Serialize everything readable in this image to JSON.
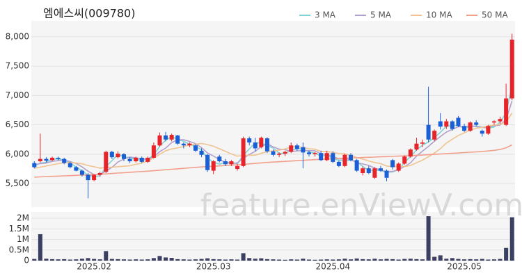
{
  "chart_data": [
    {
      "type": "candlestick",
      "title": "엠에스씨(009780)",
      "watermark": "feature.enViewV.com",
      "up_color": "#e8242b",
      "down_color": "#1a5fd6",
      "grid": true,
      "ylim": [
        5100,
        8270
      ],
      "yticks": [
        {
          "value": 5500,
          "label": "5,500"
        },
        {
          "value": 6000,
          "label": "6,000"
        },
        {
          "value": 6500,
          "label": "6,500"
        },
        {
          "value": 7000,
          "label": "7,000"
        },
        {
          "value": 7500,
          "label": "7,500"
        },
        {
          "value": 8000,
          "label": "8,000"
        }
      ],
      "open": [
        5850,
        5880,
        5920,
        5900,
        5940,
        5920,
        5850,
        5780,
        5720,
        5650,
        5560,
        5650,
        5700,
        6040,
        5950,
        6000,
        5920,
        5880,
        5940,
        5870,
        5940,
        6150,
        6320,
        6250,
        6320,
        6180,
        6150,
        6150,
        6060,
        5990,
        5720,
        5960,
        5880,
        5830,
        5750,
        5800,
        6270,
        6200,
        6120,
        6270,
        6050,
        5990,
        6010,
        6040,
        6150,
        6120,
        6030,
        6000,
        6020,
        5900,
        6020,
        5870,
        5800,
        5990,
        5900,
        5680,
        5760,
        5600,
        5760,
        5720,
        5900,
        5720,
        5840,
        5960,
        6080,
        6180,
        6500,
        6250,
        6560,
        6470,
        6560,
        6620,
        6480,
        6400,
        6540,
        6400,
        6350,
        6540,
        6560,
        6500,
        6950
      ],
      "high": [
        5880,
        6350,
        5950,
        5960,
        5960,
        5940,
        5870,
        5800,
        5740,
        5680,
        5660,
        5700,
        6060,
        6060,
        6050,
        6020,
        5950,
        5960,
        5960,
        5960,
        6200,
        6370,
        6380,
        6350,
        6330,
        6200,
        6200,
        6170,
        6100,
        6000,
        5900,
        5990,
        5920,
        5900,
        5830,
        6300,
        6300,
        6280,
        6300,
        6290,
        6080,
        6030,
        6060,
        6200,
        6180,
        6200,
        6060,
        6040,
        6060,
        6060,
        6050,
        5890,
        6010,
        6020,
        5920,
        5790,
        5800,
        5780,
        5800,
        5740,
        5920,
        5860,
        5980,
        6100,
        6280,
        6250,
        7150,
        6420,
        6700,
        6600,
        6580,
        6650,
        6520,
        6560,
        6580,
        6420,
        6500,
        6580,
        6640,
        7200,
        8050
      ],
      "low": [
        5760,
        5860,
        5860,
        5880,
        5900,
        5830,
        5760,
        5710,
        5620,
        5250,
        5540,
        5620,
        5680,
        5920,
        5930,
        5880,
        5850,
        5860,
        5850,
        5850,
        5930,
        6130,
        6220,
        6220,
        6160,
        6100,
        6120,
        6040,
        5950,
        5700,
        5660,
        5860,
        5800,
        5800,
        5720,
        5780,
        6150,
        6050,
        6100,
        6020,
        5960,
        5950,
        5970,
        6020,
        6060,
        5760,
        5960,
        5960,
        5880,
        5880,
        5850,
        5780,
        5780,
        5880,
        5700,
        5640,
        5660,
        5580,
        5700,
        5540,
        5740,
        5700,
        5820,
        5940,
        6060,
        6120,
        6200,
        6220,
        6420,
        6430,
        6400,
        6460,
        6380,
        6380,
        6480,
        6300,
        6330,
        6500,
        6520,
        6480,
        6920
      ],
      "close": [
        5780,
        5920,
        5890,
        5940,
        5920,
        5850,
        5780,
        5720,
        5650,
        5560,
        5650,
        5680,
        6040,
        5950,
        6010,
        5920,
        5880,
        5940,
        5870,
        5940,
        6150,
        6320,
        6250,
        6330,
        6180,
        6150,
        6180,
        6060,
        5990,
        5730,
        5880,
        5880,
        5830,
        5880,
        5800,
        6270,
        6200,
        6100,
        6280,
        6050,
        5990,
        6010,
        6040,
        6150,
        6090,
        6030,
        6000,
        6020,
        5900,
        6020,
        5870,
        5800,
        5990,
        5900,
        5720,
        5760,
        5680,
        5760,
        5720,
        5600,
        5780,
        5840,
        5960,
        6080,
        6180,
        6200,
        6250,
        6400,
        6470,
        6560,
        6430,
        6480,
        6400,
        6540,
        6500,
        6350,
        6480,
        6560,
        6600,
        6950,
        7950
      ],
      "series": [
        {
          "name": "3 MA",
          "color": "#7fd3d3",
          "values": [
            5800,
            5850,
            5863,
            5917,
            5917,
            5903,
            5850,
            5783,
            5717,
            5643,
            5620,
            5630,
            5790,
            5890,
            6000,
            5960,
            5937,
            5913,
            5897,
            5917,
            5987,
            6137,
            6240,
            6300,
            6253,
            6220,
            6170,
            6130,
            6077,
            5927,
            5867,
            5830,
            5863,
            5863,
            5837,
            5983,
            6090,
            6190,
            6193,
            6143,
            6107,
            6017,
            6013,
            6067,
            6093,
            6090,
            6040,
            6017,
            5973,
            5980,
            5930,
            5897,
            5887,
            5897,
            5870,
            5793,
            5720,
            5733,
            5720,
            5693,
            5700,
            5740,
            5860,
            5960,
            6073,
            6153,
            6210,
            6283,
            6373,
            6477,
            6487,
            6490,
            6437,
            6473,
            6480,
            6463,
            6443,
            6463,
            6547,
            6703,
            7167
          ]
        },
        {
          "name": "5 MA",
          "color": "#b3a0cc",
          "values": [
            5820,
            5840,
            5850,
            5880,
            5890,
            5900,
            5876,
            5842,
            5784,
            5712,
            5652,
            5652,
            5716,
            5776,
            5866,
            5920,
            5952,
            5940,
            5924,
            5910,
            5960,
            6044,
            6106,
            6198,
            6246,
            6246,
            6218,
            6180,
            6112,
            6022,
            5968,
            5908,
            5862,
            5840,
            5854,
            5932,
            5996,
            6050,
            6130,
            6180,
            6124,
            6086,
            6078,
            6048,
            6056,
            6064,
            6062,
            6058,
            6008,
            5994,
            5962,
            5922,
            5916,
            5916,
            5856,
            5834,
            5810,
            5764,
            5728,
            5704,
            5708,
            5740,
            5792,
            5852,
            5968,
            6052,
            6134,
            6222,
            6300,
            6376,
            6422,
            6468,
            6468,
            6482,
            6470,
            6454,
            6454,
            6486,
            6498,
            6588,
            6908
          ]
        },
        {
          "name": "10 MA",
          "color": "#f0c38f",
          "values": [
            5760,
            5780,
            5800,
            5820,
            5840,
            5856,
            5860,
            5850,
            5837,
            5808,
            5787,
            5763,
            5778,
            5779,
            5788,
            5795,
            5805,
            5827,
            5849,
            5887,
            5936,
            6000,
            6058,
            6090,
            6107,
            6130,
            6160,
            6172,
            6184,
            6163,
            6136,
            6092,
            6050,
            6005,
            5967,
            5979,
            5981,
            5985,
            6014,
            6046,
            6057,
            6070,
            6091,
            6118,
            6137,
            6113,
            6093,
            6085,
            6047,
            6044,
            6032,
            6011,
            6006,
            5981,
            5944,
            5917,
            5885,
            5859,
            5841,
            5799,
            5790,
            5794,
            5791,
            5809,
            5855,
            5899,
            5956,
            6020,
            6095,
            6191,
            6256,
            6320,
            6364,
            6410,
            6442,
            6457,
            6480,
            6496,
            6509,
            6548,
            6700
          ]
        },
        {
          "name": "50 MA",
          "color": "#f2a08c",
          "values": [
            5610,
            5615,
            5620,
            5624,
            5628,
            5632,
            5636,
            5640,
            5644,
            5648,
            5652,
            5658,
            5665,
            5672,
            5679,
            5686,
            5693,
            5700,
            5706,
            5712,
            5720,
            5728,
            5736,
            5744,
            5752,
            5760,
            5768,
            5776,
            5784,
            5790,
            5796,
            5802,
            5808,
            5814,
            5820,
            5828,
            5836,
            5844,
            5852,
            5860,
            5866,
            5872,
            5878,
            5884,
            5890,
            5896,
            5902,
            5908,
            5914,
            5920,
            5924,
            5928,
            5932,
            5936,
            5940,
            5944,
            5948,
            5952,
            5956,
            5960,
            5964,
            5968,
            5972,
            5976,
            5980,
            5986,
            5992,
            5998,
            6004,
            6010,
            6016,
            6022,
            6028,
            6034,
            6040,
            6048,
            6056,
            6066,
            6080,
            6110,
            6160
          ]
        }
      ]
    },
    {
      "type": "bar",
      "color": "#3b3f62",
      "grid": true,
      "categories": [
        null,
        null,
        null,
        null,
        null,
        null,
        null,
        null,
        null,
        null,
        "2025.02",
        null,
        null,
        null,
        null,
        null,
        null,
        null,
        null,
        null,
        null,
        null,
        null,
        null,
        null,
        null,
        null,
        null,
        null,
        null,
        "2025.03",
        null,
        null,
        null,
        null,
        null,
        null,
        null,
        null,
        null,
        null,
        null,
        null,
        null,
        null,
        null,
        null,
        null,
        null,
        null,
        "2025.04",
        null,
        null,
        null,
        null,
        null,
        null,
        null,
        null,
        null,
        null,
        null,
        null,
        null,
        null,
        null,
        null,
        null,
        null,
        null,
        null,
        null,
        "2025.05",
        null,
        null,
        null,
        null,
        null,
        null,
        null,
        null
      ],
      "ylim": [
        0,
        2300000
      ],
      "yticks": [
        {
          "value": 0,
          "label": "0"
        },
        {
          "value": 500000,
          "label": "0.5M"
        },
        {
          "value": 1000000,
          "label": "1M"
        },
        {
          "value": 1500000,
          "label": "1.5M"
        },
        {
          "value": 2000000,
          "label": "2M"
        }
      ],
      "values": [
        80000,
        1250000,
        90000,
        70000,
        60000,
        70000,
        50000,
        60000,
        90000,
        120000,
        80000,
        60000,
        450000,
        80000,
        70000,
        60000,
        50000,
        60000,
        50000,
        60000,
        120000,
        220000,
        150000,
        130000,
        70000,
        60000,
        50000,
        60000,
        80000,
        110000,
        70000,
        60000,
        50000,
        60000,
        50000,
        350000,
        120000,
        90000,
        110000,
        70000,
        60000,
        50000,
        40000,
        60000,
        50000,
        90000,
        50000,
        40000,
        50000,
        60000,
        50000,
        60000,
        90000,
        60000,
        100000,
        70000,
        60000,
        90000,
        60000,
        80000,
        70000,
        50000,
        80000,
        90000,
        70000,
        60000,
        2100000,
        180000,
        250000,
        90000,
        120000,
        80000,
        60000,
        70000,
        60000,
        80000,
        50000,
        60000,
        80000,
        600000,
        2050000
      ]
    }
  ]
}
